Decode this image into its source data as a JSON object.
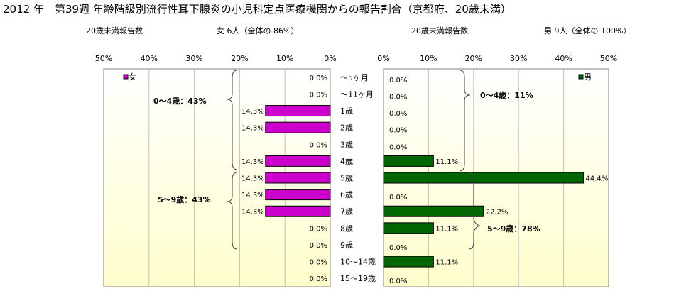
{
  "title": "2012 年　第39週 年齢階級別流行性耳下腺炎の小児科定点医療機関からの報告割合（京都府、20歳未満）",
  "left_subtitle": {
    "label": "20歳未満報告数",
    "count": "女  6人（全体の  86%）"
  },
  "right_subtitle": {
    "label": "20歳未満報告数",
    "count": "男  9人（全体の  100%）"
  },
  "chart_data": [
    {
      "type": "bar",
      "orientation": "horizontal",
      "direction": "right-to-left",
      "series": [
        {
          "name": "女",
          "color": "#cc00cc",
          "values": [
            0.0,
            0.0,
            14.3,
            14.3,
            0.0,
            14.3,
            14.3,
            14.3,
            14.3,
            0.0,
            0.0,
            0.0,
            0.0
          ]
        }
      ],
      "value_labels": [
        "0.0%",
        "0.0%",
        "14.3%",
        "14.3%",
        "0.0%",
        "14.3%",
        "14.3%",
        "14.3%",
        "14.3%",
        "0.0%",
        "0.0%",
        "0.0%",
        "0.0%"
      ],
      "xlim": [
        0,
        50
      ],
      "xticks": [
        "50%",
        "40%",
        "30%",
        "20%",
        "10%",
        "0%"
      ],
      "legend": "top-left",
      "grid": true,
      "annotations": [
        "0〜4歳：43%",
        "5〜9歳：43%"
      ]
    },
    {
      "type": "bar",
      "orientation": "horizontal",
      "direction": "left-to-right",
      "series": [
        {
          "name": "男",
          "color": "#006600",
          "values": [
            0.0,
            0.0,
            0.0,
            0.0,
            0.0,
            11.1,
            44.4,
            0.0,
            22.2,
            11.1,
            0.0,
            11.1,
            0.0
          ]
        }
      ],
      "value_labels": [
        "0.0%",
        "0.0%",
        "0.0%",
        "0.0%",
        "0.0%",
        "11.1%",
        "44.4%",
        "0.0%",
        "22.2%",
        "11.1%",
        "0.0%",
        "11.1%",
        "0.0%"
      ],
      "xlim": [
        0,
        50
      ],
      "xticks": [
        "0%",
        "10%",
        "20%",
        "30%",
        "40%",
        "50%"
      ],
      "legend": "top-right",
      "grid": true,
      "annotations": [
        "0〜4歳：11%",
        "5〜9歳：78%"
      ]
    }
  ],
  "categories": [
    "〜5ヶ月",
    "〜11ヶ月",
    "1歳",
    "2歳",
    "3歳",
    "4歳",
    "5歳",
    "6歳",
    "7歳",
    "8歳",
    "9歳",
    "10〜14歳",
    "15〜19歳"
  ],
  "colors": {
    "plot_bg_top": "#ffffff",
    "plot_bg_bottom": "#ffffcc",
    "grid": "#c0c0c0",
    "female": "#cc00cc",
    "male": "#006600"
  }
}
